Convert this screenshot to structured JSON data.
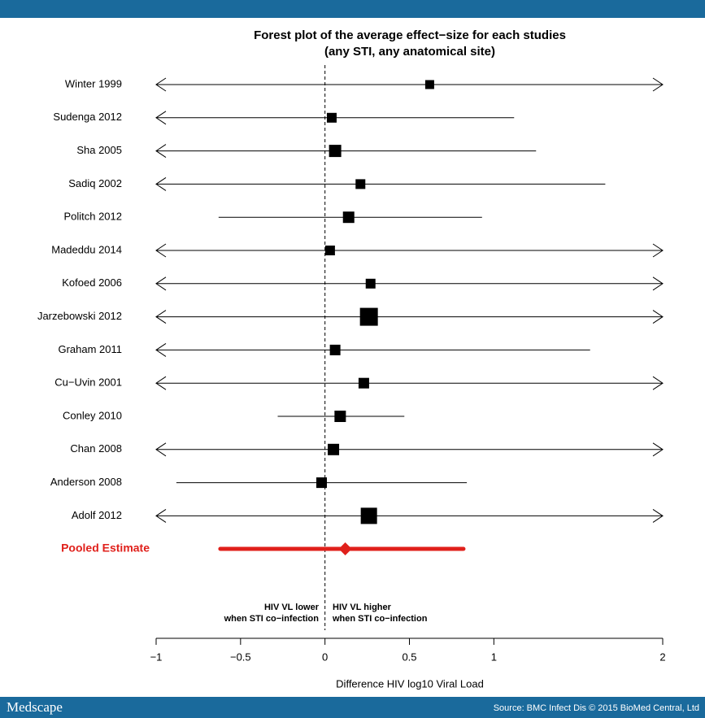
{
  "header": {
    "brand": "Medscape",
    "source": "Source: BMC Infect Dis © 2015 BioMed Central, Ltd"
  },
  "chart_data": {
    "type": "forest",
    "title": [
      "Forest plot of the average effect−size for each studies",
      "(any STI, any anatomical site)"
    ],
    "x_label": "Difference HIV log10 Viral Load",
    "annotations": [
      [
        "HIV VL lower",
        "when STI co−infection"
      ],
      [
        "HIV VL higher",
        "when STI co−infection"
      ]
    ],
    "categories": [
      "Winter 1999",
      "Sudenga 2012",
      "Sha 2005",
      "Sadiq 2002",
      "Politch 2012",
      "Madeddu 2014",
      "Kofoed 2006",
      "Jarzebowski 2012",
      "Graham 2011",
      "Cu−Uvin 2001",
      "Conley 2010",
      "Chan 2008",
      "Anderson 2008",
      "Adolf 2012"
    ],
    "values": [
      0.62,
      0.04,
      0.06,
      0.21,
      0.14,
      0.03,
      0.27,
      0.26,
      0.06,
      0.23,
      0.09,
      0.05,
      -0.02,
      0.26
    ],
    "lower": [
      null,
      null,
      null,
      null,
      -0.63,
      null,
      null,
      null,
      null,
      null,
      -0.28,
      null,
      -0.88,
      null
    ],
    "upper": [
      null,
      1.12,
      1.25,
      1.66,
      0.93,
      null,
      null,
      null,
      1.57,
      null,
      0.47,
      null,
      0.84,
      null
    ],
    "weights": [
      11,
      12,
      15,
      12,
      14,
      12,
      12,
      22,
      13,
      13,
      14,
      14,
      13,
      20
    ],
    "pooled": {
      "name": "Pooled Estimate",
      "value": 0.12,
      "lower": -0.62,
      "upper": 0.82,
      "color": "#e0201b"
    },
    "color": "#000000",
    "xlim": [
      -1,
      2
    ],
    "xticks": [
      {
        "value": -1,
        "label": "−1"
      },
      {
        "value": -0.5,
        "label": "−0.5"
      },
      0,
      0.5,
      1,
      2
    ]
  }
}
